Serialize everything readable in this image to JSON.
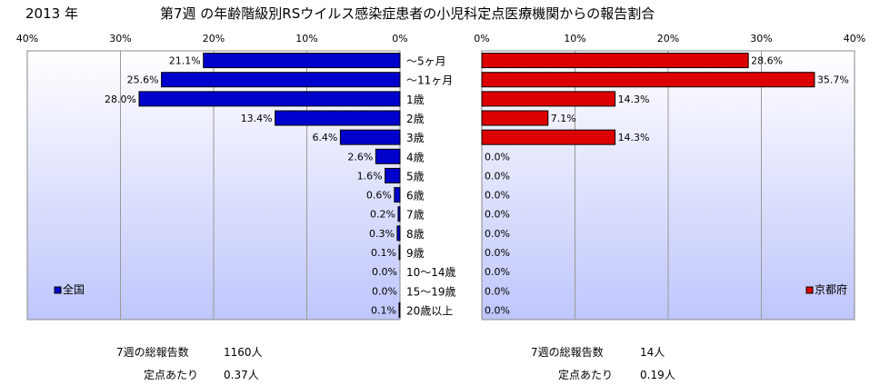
{
  "header": {
    "year": "2013 年",
    "title": "第7週 の年齢階級別RSウイルス感染症患者の小児科定点医療機関からの報告割合"
  },
  "colors": {
    "national_bar": "#0000cc",
    "kyoto_bar": "#dd0000",
    "plot_bg_top": "#ffffff",
    "plot_bg_bottom": "#bfc6fb"
  },
  "chart_data": [
    {
      "type": "bar",
      "orientation": "horizontal",
      "direction": "right-to-left",
      "categories": [
        "〜5ヶ月",
        "〜11ヶ月",
        "1歳",
        "2歳",
        "3歳",
        "4歳",
        "5歳",
        "6歳",
        "7歳",
        "8歳",
        "9歳",
        "10〜14歳",
        "15〜19歳",
        "20歳以上"
      ],
      "series": [
        {
          "name": "全国",
          "values": [
            21.1,
            25.6,
            28.0,
            13.4,
            6.4,
            2.6,
            1.6,
            0.6,
            0.2,
            0.3,
            0.1,
            0.0,
            0.0,
            0.1
          ],
          "labels": [
            "21.1%",
            "25.6%",
            "28.0%",
            "13.4%",
            "6.4%",
            "2.6%",
            "1.6%",
            "0.6%",
            "0.2%",
            "0.3%",
            "0.1%",
            "0.0%",
            "0.0%",
            "0.1%"
          ]
        }
      ],
      "xlim": [
        0,
        40
      ],
      "xticks": [
        "40%",
        "30%",
        "20%",
        "10%",
        "0%"
      ],
      "grid": true,
      "legend_position": "bottom-left"
    },
    {
      "type": "bar",
      "orientation": "horizontal",
      "direction": "left-to-right",
      "categories": [
        "〜5ヶ月",
        "〜11ヶ月",
        "1歳",
        "2歳",
        "3歳",
        "4歳",
        "5歳",
        "6歳",
        "7歳",
        "8歳",
        "9歳",
        "10〜14歳",
        "15〜19歳",
        "20歳以上"
      ],
      "series": [
        {
          "name": "京都府",
          "values": [
            28.6,
            35.7,
            14.3,
            7.1,
            14.3,
            0.0,
            0.0,
            0.0,
            0.0,
            0.0,
            0.0,
            0.0,
            0.0,
            0.0
          ],
          "labels": [
            "28.6%",
            "35.7%",
            "14.3%",
            "7.1%",
            "14.3%",
            "0.0%",
            "0.0%",
            "0.0%",
            "0.0%",
            "0.0%",
            "0.0%",
            "0.0%",
            "0.0%",
            "0.0%"
          ]
        }
      ],
      "xlim": [
        0,
        40
      ],
      "xticks": [
        "0%",
        "10%",
        "20%",
        "30%",
        "40%"
      ],
      "grid": true,
      "legend_position": "bottom-right"
    }
  ],
  "stats": {
    "national": {
      "total_label": "7週の総報告数",
      "total_value": "1160人",
      "per_label": "定点あたり",
      "per_value": "0.37人"
    },
    "kyoto": {
      "total_label": "7週の総報告数",
      "total_value": "14人",
      "per_label": "定点あたり",
      "per_value": "0.19人"
    }
  }
}
